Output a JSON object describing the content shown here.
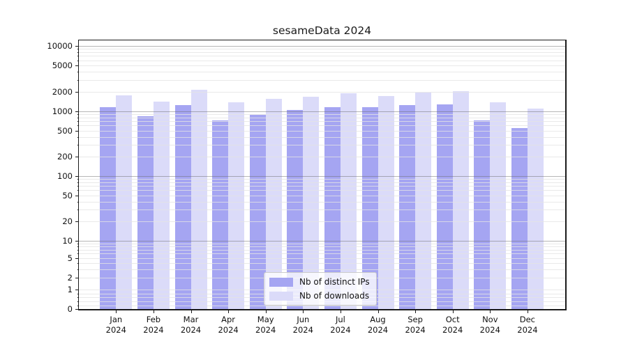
{
  "chart_data": {
    "type": "bar",
    "title": "sesameData 2024",
    "categories": [
      "Jan",
      "Feb",
      "Mar",
      "Apr",
      "May",
      "Jun",
      "Jul",
      "Aug",
      "Sep",
      "Oct",
      "Nov",
      "Dec"
    ],
    "year_label": "2024",
    "series": [
      {
        "name": "Nb of distinct IPs",
        "color": "#a5a5f2",
        "values": [
          1150,
          840,
          1230,
          720,
          870,
          1040,
          1160,
          1160,
          1230,
          1260,
          710,
          550
        ]
      },
      {
        "name": "Nb of downloads",
        "color": "#dbdbf9",
        "values": [
          1750,
          1390,
          2120,
          1350,
          1550,
          1670,
          1900,
          1710,
          1950,
          2030,
          1370,
          1090
        ]
      }
    ],
    "y_axis": {
      "scale": "symlog",
      "ticks": [
        10000,
        5000,
        2000,
        1000,
        500,
        200,
        100,
        50,
        20,
        10,
        5,
        2,
        1,
        0
      ],
      "range": [
        0,
        10000
      ]
    },
    "x_axis": {
      "unit": "month"
    },
    "grid": true,
    "legend_position": "lower center",
    "colors": {
      "bar_ips": "#a5a5f2",
      "bar_downloads": "#dbdbf9",
      "major_grid": "#b0b0b0",
      "minor_grid": "#e6e6e6",
      "spine": "#1a1a1a",
      "background": "#ffffff"
    }
  }
}
